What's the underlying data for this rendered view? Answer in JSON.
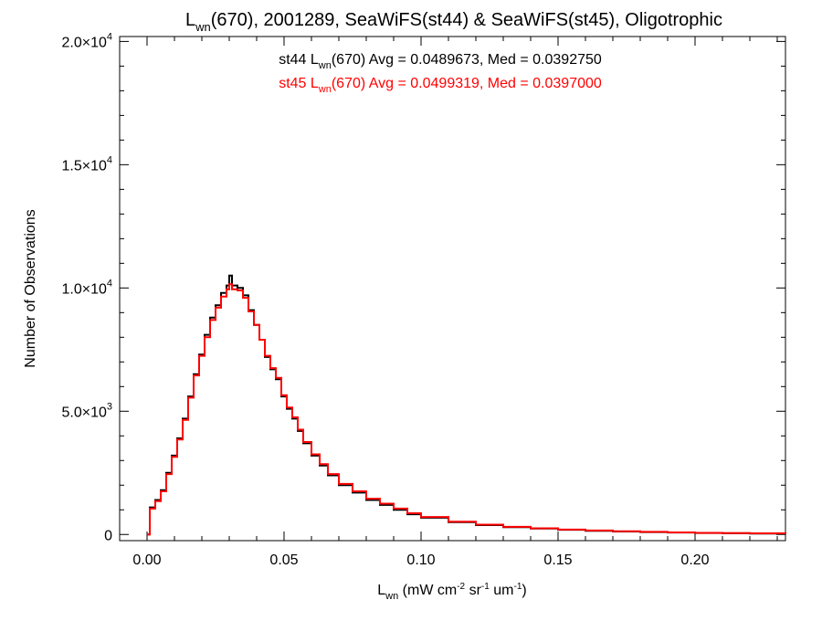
{
  "chart_data": {
    "type": "line",
    "title": {
      "pre": "L",
      "sub": "wn",
      "post": "(670), 2001289, SeaWiFS(st44) & SeaWiFS(st45), Oligotrophic"
    },
    "xlabel": {
      "pre": "L",
      "sub": "wn",
      "mid1": " (mW cm",
      "sup1": "-2",
      "mid2": " sr",
      "sup2": "-1",
      "mid3": " um",
      "sup3": "-1",
      "post": ")"
    },
    "ylabel": "Number of Observations",
    "xlim": [
      -0.01,
      0.233
    ],
    "ylim": [
      -250,
      20200
    ],
    "x_ticks": [
      {
        "value": 0.0,
        "label": "0.00"
      },
      {
        "value": 0.05,
        "label": "0.05"
      },
      {
        "value": 0.1,
        "label": "0.10"
      },
      {
        "value": 0.15,
        "label": "0.15"
      },
      {
        "value": 0.2,
        "label": "0.20"
      }
    ],
    "y_ticks": [
      {
        "value": 0,
        "mantissa": "0",
        "exp": ""
      },
      {
        "value": 5000,
        "mantissa": "5.0×10",
        "exp": "3"
      },
      {
        "value": 10000,
        "mantissa": "1.0×10",
        "exp": "4"
      },
      {
        "value": 15000,
        "mantissa": "1.5×10",
        "exp": "4"
      },
      {
        "value": 20000,
        "mantissa": "2.0×10",
        "exp": "4"
      }
    ],
    "grid": false,
    "annotations": [
      {
        "id": "st44",
        "color": "#000000",
        "pre": "st44 L",
        "sub": "wn",
        "post": "(670) Avg = 0.0489673, Med = 0.0392750"
      },
      {
        "id": "st45",
        "color": "#ff0000",
        "pre": "st45 L",
        "sub": "wn",
        "post": "(670) Avg = 0.0499319, Med = 0.0397000"
      }
    ],
    "series": [
      {
        "id": "st44",
        "color": "#000000",
        "x": [
          0.0,
          0.001,
          0.003,
          0.005,
          0.007,
          0.009,
          0.011,
          0.013,
          0.015,
          0.017,
          0.019,
          0.021,
          0.023,
          0.025,
          0.027,
          0.029,
          0.03,
          0.031,
          0.033,
          0.035,
          0.037,
          0.039,
          0.041,
          0.043,
          0.045,
          0.047,
          0.049,
          0.051,
          0.053,
          0.055,
          0.057,
          0.06,
          0.063,
          0.066,
          0.07,
          0.075,
          0.08,
          0.085,
          0.09,
          0.095,
          0.1,
          0.11,
          0.12,
          0.13,
          0.14,
          0.15,
          0.16,
          0.17,
          0.18,
          0.19,
          0.2,
          0.21,
          0.22,
          0.233
        ],
        "y": [
          0,
          1100,
          1400,
          1800,
          2500,
          3200,
          3900,
          4700,
          5600,
          6500,
          7300,
          8100,
          8800,
          9300,
          9800,
          10100,
          10500,
          10100,
          10000,
          9700,
          9100,
          8500,
          7900,
          7200,
          6700,
          6300,
          5600,
          5100,
          4700,
          4200,
          3700,
          3200,
          2800,
          2400,
          2000,
          1700,
          1400,
          1200,
          1000,
          820,
          680,
          500,
          380,
          300,
          240,
          190,
          150,
          120,
          100,
          80,
          60,
          50,
          40,
          30
        ]
      },
      {
        "id": "st45",
        "color": "#ff0000",
        "x": [
          0.0,
          0.001,
          0.003,
          0.005,
          0.007,
          0.009,
          0.011,
          0.013,
          0.015,
          0.017,
          0.019,
          0.021,
          0.023,
          0.025,
          0.027,
          0.029,
          0.03,
          0.031,
          0.033,
          0.035,
          0.037,
          0.039,
          0.041,
          0.043,
          0.045,
          0.047,
          0.049,
          0.051,
          0.053,
          0.055,
          0.057,
          0.06,
          0.063,
          0.066,
          0.07,
          0.075,
          0.08,
          0.085,
          0.09,
          0.095,
          0.1,
          0.11,
          0.12,
          0.13,
          0.14,
          0.15,
          0.16,
          0.17,
          0.18,
          0.19,
          0.2,
          0.21,
          0.22,
          0.233
        ],
        "y": [
          0,
          1050,
          1350,
          1750,
          2450,
          3150,
          3850,
          4650,
          5550,
          6450,
          7250,
          8000,
          8700,
          9200,
          9650,
          9950,
          10150,
          9950,
          9900,
          9600,
          9050,
          8500,
          7900,
          7250,
          6750,
          6350,
          5650,
          5150,
          4750,
          4250,
          3750,
          3250,
          2850,
          2450,
          2050,
          1750,
          1450,
          1250,
          1050,
          860,
          710,
          520,
          400,
          310,
          250,
          200,
          160,
          130,
          105,
          85,
          65,
          55,
          45,
          35
        ]
      }
    ]
  }
}
